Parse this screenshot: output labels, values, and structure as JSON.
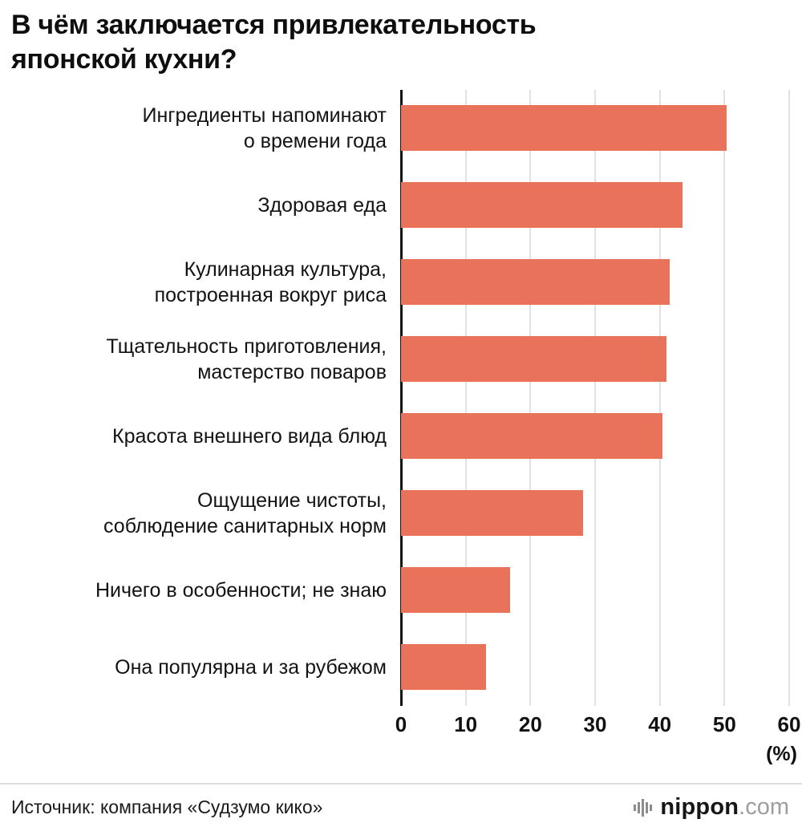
{
  "title": "В чём заключается привлекательность\nяпонской кухни?",
  "chart_data": {
    "type": "bar",
    "orientation": "horizontal",
    "title": "В чём заключается привлекательность японской кухни?",
    "categories": [
      "Ингредиенты напоминают\nо времени года",
      "Здоровая еда",
      "Кулинарная культура,\nпостроенная вокруг риса",
      "Тщательность приготовления,\nмастерство поваров",
      "Красота внешнего вида блюд",
      "Ощущение чистоты,\nсоблюдение санитарных норм",
      "Ничего в особенности; не знаю",
      "Она популярна и за рубежом"
    ],
    "values": [
      50.3,
      43.5,
      41.5,
      41.0,
      40.4,
      28.2,
      16.8,
      13.2
    ],
    "xlabel": "(%)",
    "ylabel": "",
    "xlim": [
      0,
      60
    ],
    "ticks": [
      0,
      10,
      20,
      30,
      40,
      50,
      60
    ],
    "unit_label": "(%)",
    "grid": true,
    "legend": false,
    "bar_color": "#e8735a",
    "gridline_color": "#e2e2e2",
    "axis_color": "#141414"
  },
  "footer": {
    "source": "Источник: компания «Судзумо кико»",
    "logo": {
      "brand": "nippon",
      "tld": ".com"
    }
  }
}
